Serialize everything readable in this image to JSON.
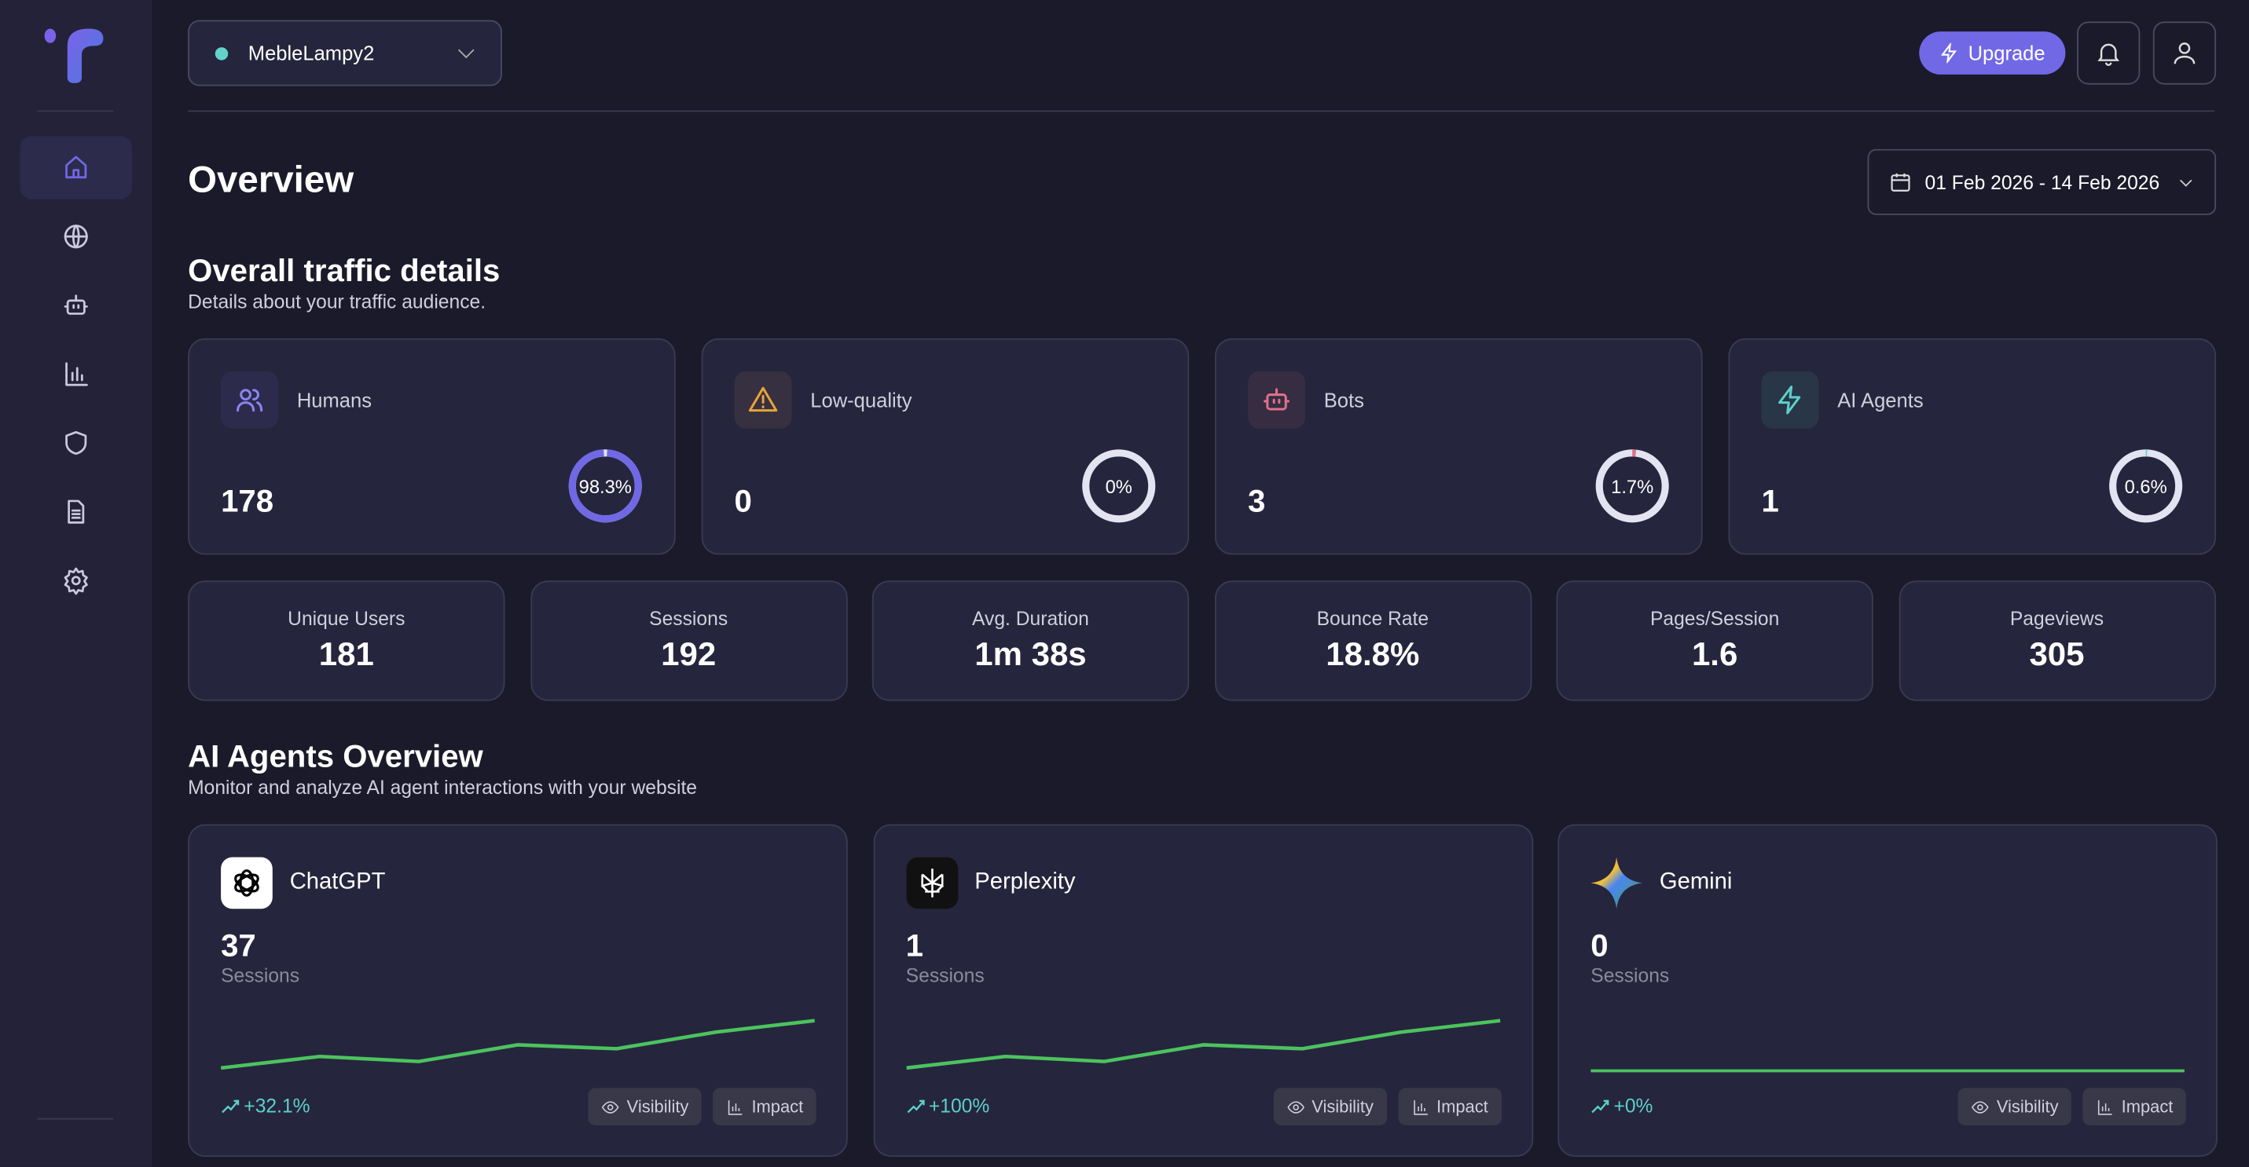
{
  "site_selector": {
    "value": "MebleLampy2",
    "status_color": "#62d3cb"
  },
  "header": {
    "upgrade_label": "Upgrade",
    "notifications_icon": "bell-icon",
    "profile_icon": "user-icon"
  },
  "sidebar": {
    "items": [
      {
        "icon": "home-icon",
        "active": true
      },
      {
        "icon": "globe-icon"
      },
      {
        "icon": "bot-icon"
      },
      {
        "icon": "bar-chart-icon"
      },
      {
        "icon": "shield-icon"
      },
      {
        "icon": "document-icon"
      },
      {
        "icon": "settings-icon"
      }
    ]
  },
  "page": {
    "title": "Overview",
    "date_range": "01 Feb 2026 - 14 Feb 2026"
  },
  "traffic": {
    "title": "Overall traffic details",
    "subtitle": "Details about your traffic audience.",
    "cards": [
      {
        "label": "Humans",
        "value": "178",
        "percent_label": "98.3%",
        "percent": 98.3,
        "color": "#7168e6",
        "icon_color": "#8c84f0",
        "icon_bg": "#2d2b4c"
      },
      {
        "label": "Low-quality",
        "value": "0",
        "percent_label": "0%",
        "percent": 0,
        "color": "#e8a33a",
        "icon_color": "#e8a33a",
        "icon_bg": "#363040"
      },
      {
        "label": "Bots",
        "value": "3",
        "percent_label": "1.7%",
        "percent": 1.7,
        "color": "#e0708a",
        "icon_color": "#e0708a",
        "icon_bg": "#362d42"
      },
      {
        "label": "AI Agents",
        "value": "1",
        "percent_label": "0.6%",
        "percent": 0.6,
        "color": "#5dd0c8",
        "icon_color": "#5dd0c8",
        "icon_bg": "#283648"
      }
    ]
  },
  "stats": [
    {
      "label": "Unique Users",
      "value": "181"
    },
    {
      "label": "Sessions",
      "value": "192"
    },
    {
      "label": "Avg. Duration",
      "value": "1m 38s"
    },
    {
      "label": "Bounce Rate",
      "value": "18.8%"
    },
    {
      "label": "Pages/Session",
      "value": "1.6"
    },
    {
      "label": "Pageviews",
      "value": "305"
    }
  ],
  "ai_agents": {
    "title": "AI Agents Overview",
    "subtitle": "Monitor and analyze AI agent interactions with your website",
    "visibility_label": "Visibility",
    "impact_label": "Impact",
    "sessions_label": "Sessions",
    "agents": [
      {
        "name": "ChatGPT",
        "sessions": "37",
        "trend": "+32.1%",
        "sparkline": [
          0,
          9,
          5,
          18,
          15,
          28,
          37
        ]
      },
      {
        "name": "Perplexity",
        "sessions": "1",
        "trend": "+100%",
        "sparkline": [
          0,
          9,
          5,
          18,
          15,
          28,
          37
        ]
      },
      {
        "name": "Gemini",
        "sessions": "0",
        "trend": "+0%",
        "sparkline": [
          0,
          0,
          0,
          0,
          0,
          0,
          0
        ]
      }
    ],
    "line_color": "#4cc35e"
  }
}
